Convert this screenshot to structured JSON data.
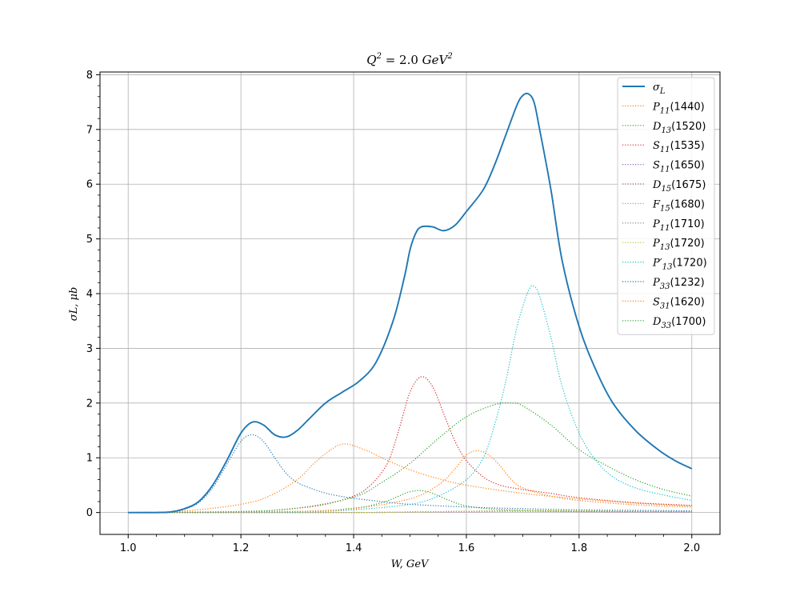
{
  "chart_data": {
    "type": "line",
    "title": "Q² = 2.0 GeV²",
    "title_parts": {
      "base": "Q",
      "sup1": "2",
      "mid": " = 2.0 ",
      "unit": "GeV",
      "sup2": "2"
    },
    "xlabel": "W, GeV",
    "ylabel": "σL, μb",
    "xlim": [
      0.95,
      2.05
    ],
    "ylim": [
      -0.4,
      8.05
    ],
    "xticks": [
      1.0,
      1.2,
      1.4,
      1.6,
      1.8,
      2.0
    ],
    "xtick_labels": [
      "1.0",
      "1.2",
      "1.4",
      "1.6",
      "1.8",
      "2.0"
    ],
    "yticks": [
      0,
      1,
      2,
      3,
      4,
      5,
      6,
      7,
      8
    ],
    "ytick_labels": [
      "0",
      "1",
      "2",
      "3",
      "4",
      "5",
      "6",
      "7",
      "8"
    ],
    "grid": true,
    "legend": "top-right",
    "series": [
      {
        "name": "σL",
        "label_base": "σ",
        "label_sub": "L",
        "label_tail": "",
        "color": "#1f77b4",
        "style": "solid",
        "x": [
          1.0,
          1.05,
          1.075,
          1.1,
          1.125,
          1.15,
          1.175,
          1.2,
          1.22,
          1.24,
          1.26,
          1.28,
          1.3,
          1.32,
          1.35,
          1.38,
          1.41,
          1.44,
          1.47,
          1.49,
          1.5,
          1.51,
          1.52,
          1.54,
          1.56,
          1.58,
          1.6,
          1.63,
          1.65,
          1.67,
          1.69,
          1.7,
          1.71,
          1.72,
          1.73,
          1.75,
          1.77,
          1.8,
          1.83,
          1.86,
          1.9,
          1.94,
          1.97,
          2.0
        ],
        "y": [
          0.0,
          0.0,
          0.01,
          0.07,
          0.2,
          0.5,
          0.95,
          1.45,
          1.65,
          1.6,
          1.42,
          1.38,
          1.5,
          1.7,
          2.0,
          2.2,
          2.4,
          2.75,
          3.5,
          4.3,
          4.8,
          5.1,
          5.22,
          5.22,
          5.15,
          5.25,
          5.5,
          5.9,
          6.35,
          6.9,
          7.45,
          7.62,
          7.65,
          7.5,
          7.0,
          5.9,
          4.6,
          3.4,
          2.6,
          2.0,
          1.5,
          1.15,
          0.95,
          0.8
        ]
      },
      {
        "name": "P11(1440)",
        "label_base": "P",
        "label_sub": "11",
        "label_tail": "(1440)",
        "color": "#ff7f0e",
        "style": "dotted",
        "x": [
          1.0,
          1.1,
          1.2,
          1.25,
          1.3,
          1.33,
          1.36,
          1.38,
          1.4,
          1.43,
          1.46,
          1.5,
          1.55,
          1.6,
          1.7,
          1.8,
          1.9,
          2.0
        ],
        "y": [
          0.0,
          0.03,
          0.15,
          0.3,
          0.6,
          0.9,
          1.15,
          1.25,
          1.22,
          1.1,
          0.95,
          0.78,
          0.62,
          0.5,
          0.35,
          0.25,
          0.17,
          0.12
        ]
      },
      {
        "name": "D13(1520)",
        "label_base": "D",
        "label_sub": "13",
        "label_tail": "(1520)",
        "color": "#2ca02c",
        "style": "dotted",
        "x": [
          1.0,
          1.3,
          1.4,
          1.45,
          1.48,
          1.5,
          1.52,
          1.54,
          1.57,
          1.6,
          1.65,
          1.7,
          1.8,
          2.0
        ],
        "y": [
          0.0,
          0.02,
          0.08,
          0.18,
          0.3,
          0.38,
          0.4,
          0.35,
          0.22,
          0.12,
          0.06,
          0.04,
          0.02,
          0.01
        ]
      },
      {
        "name": "S11(1535)",
        "label_base": "S",
        "label_sub": "11",
        "label_tail": "(1535)",
        "color": "#d62728",
        "style": "dotted",
        "x": [
          1.0,
          1.2,
          1.3,
          1.35,
          1.4,
          1.43,
          1.46,
          1.48,
          1.5,
          1.52,
          1.54,
          1.56,
          1.58,
          1.6,
          1.63,
          1.66,
          1.7,
          1.75,
          1.8,
          1.9,
          2.0
        ],
        "y": [
          0.0,
          0.01,
          0.08,
          0.15,
          0.3,
          0.5,
          0.9,
          1.5,
          2.2,
          2.48,
          2.3,
          1.8,
          1.3,
          0.95,
          0.65,
          0.5,
          0.42,
          0.35,
          0.27,
          0.18,
          0.13
        ]
      },
      {
        "name": "S11(1650)",
        "label_base": "S",
        "label_sub": "11",
        "label_tail": "(1650)",
        "color": "#9467bd",
        "style": "dotted",
        "x": [
          1.0,
          1.4,
          1.5,
          1.6,
          1.65,
          1.7,
          1.8,
          1.9,
          2.0
        ],
        "y": [
          0.0,
          0.0,
          0.01,
          0.02,
          0.03,
          0.03,
          0.02,
          0.01,
          0.01
        ]
      },
      {
        "name": "D15(1675)",
        "label_base": "D",
        "label_sub": "15",
        "label_tail": "(1675)",
        "color": "#8c564b",
        "style": "dotted",
        "x": [
          1.0,
          1.4,
          1.5,
          1.6,
          1.67,
          1.75,
          1.85,
          2.0
        ],
        "y": [
          0.0,
          0.0,
          0.01,
          0.02,
          0.03,
          0.02,
          0.02,
          0.01
        ]
      },
      {
        "name": "F15(1680)",
        "label_base": "F",
        "label_sub": "15",
        "label_tail": "(1680)",
        "color": "#e377c2",
        "style": "dotted",
        "x": [
          1.0,
          1.4,
          1.5,
          1.6,
          1.68,
          1.75,
          1.85,
          2.0
        ],
        "y": [
          0.0,
          0.0,
          0.01,
          0.01,
          0.02,
          0.02,
          0.01,
          0.01
        ]
      },
      {
        "name": "P11(1710)",
        "label_base": "P",
        "label_sub": "11",
        "label_tail": "(1710)",
        "color": "#7f7f7f",
        "style": "dotted",
        "x": [
          1.0,
          1.4,
          1.5,
          1.6,
          1.7,
          1.8,
          1.9,
          2.0
        ],
        "y": [
          0.0,
          0.0,
          0.01,
          0.02,
          0.03,
          0.03,
          0.02,
          0.02
        ]
      },
      {
        "name": "P13(1720)",
        "label_base": "P",
        "label_sub": "13",
        "label_tail": "(1720)",
        "color": "#bcbd22",
        "style": "dotted",
        "x": [
          1.0,
          1.4,
          1.5,
          1.6,
          1.7,
          1.8,
          1.9,
          2.0
        ],
        "y": [
          0.0,
          0.0,
          0.01,
          0.02,
          0.03,
          0.03,
          0.02,
          0.02
        ]
      },
      {
        "name": "P'13(1720)",
        "label_base": "P′",
        "label_sub": "13",
        "label_tail": "(1720)",
        "color": "#17becf",
        "style": "dotted",
        "x": [
          1.0,
          1.3,
          1.4,
          1.5,
          1.55,
          1.6,
          1.63,
          1.65,
          1.67,
          1.69,
          1.71,
          1.72,
          1.73,
          1.75,
          1.77,
          1.8,
          1.83,
          1.86,
          1.9,
          1.95,
          2.0
        ],
        "y": [
          0.0,
          0.01,
          0.05,
          0.15,
          0.3,
          0.6,
          1.0,
          1.6,
          2.4,
          3.4,
          4.05,
          4.13,
          3.95,
          3.2,
          2.3,
          1.45,
          0.95,
          0.65,
          0.45,
          0.32,
          0.22
        ]
      },
      {
        "name": "P33(1232)",
        "label_base": "P",
        "label_sub": "33",
        "label_tail": "(1232)",
        "color": "#1f77b4",
        "style": "dotted",
        "x": [
          1.0,
          1.05,
          1.075,
          1.1,
          1.125,
          1.15,
          1.175,
          1.2,
          1.22,
          1.24,
          1.26,
          1.28,
          1.3,
          1.33,
          1.36,
          1.4,
          1.45,
          1.5,
          1.6,
          1.7,
          1.8,
          1.9,
          2.0
        ],
        "y": [
          0.0,
          0.0,
          0.01,
          0.06,
          0.18,
          0.45,
          0.88,
          1.3,
          1.42,
          1.3,
          1.0,
          0.72,
          0.55,
          0.42,
          0.33,
          0.26,
          0.2,
          0.15,
          0.1,
          0.07,
          0.05,
          0.04,
          0.03
        ]
      },
      {
        "name": "S31(1620)",
        "label_base": "S",
        "label_sub": "31",
        "label_tail": "(1620)",
        "color": "#ff7f0e",
        "style": "dotted",
        "x": [
          1.0,
          1.3,
          1.4,
          1.5,
          1.55,
          1.58,
          1.6,
          1.62,
          1.64,
          1.66,
          1.68,
          1.7,
          1.75,
          1.8,
          1.9,
          2.0
        ],
        "y": [
          0.0,
          0.02,
          0.07,
          0.25,
          0.5,
          0.8,
          1.05,
          1.13,
          1.05,
          0.85,
          0.6,
          0.45,
          0.3,
          0.22,
          0.14,
          0.1
        ]
      },
      {
        "name": "D33(1700)",
        "label_base": "D",
        "label_sub": "33",
        "label_tail": "(1700)",
        "color": "#2ca02c",
        "style": "dotted",
        "x": [
          1.0,
          1.2,
          1.3,
          1.4,
          1.45,
          1.5,
          1.55,
          1.6,
          1.65,
          1.68,
          1.7,
          1.75,
          1.8,
          1.85,
          1.9,
          1.95,
          2.0
        ],
        "y": [
          0.0,
          0.02,
          0.08,
          0.28,
          0.55,
          0.9,
          1.35,
          1.75,
          1.97,
          2.0,
          1.95,
          1.6,
          1.15,
          0.85,
          0.6,
          0.42,
          0.3
        ]
      }
    ]
  }
}
